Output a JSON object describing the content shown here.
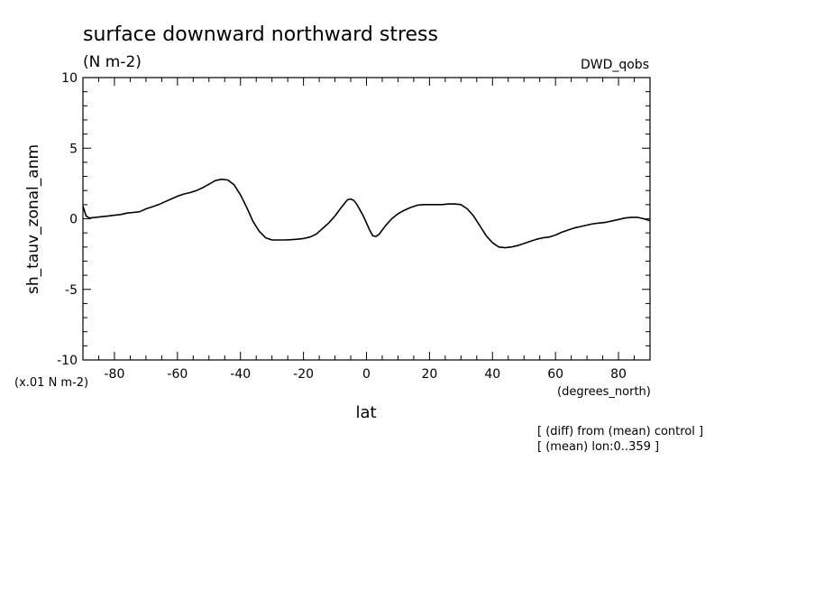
{
  "chart_data": {
    "type": "line",
    "title": "surface downward northward stress",
    "subtitle": "(N m-2)",
    "source_label": "DWD_qobs",
    "xlabel": "lat",
    "ylabel": "sh_tauv_zonal_anm",
    "x_unit": "(degrees_north)",
    "y_unit": "(x.01 N m-2)",
    "xlim": [
      -90,
      90
    ],
    "ylim": [
      -10,
      10
    ],
    "x_ticks": [
      -80,
      -60,
      -40,
      -20,
      0,
      20,
      40,
      60,
      80
    ],
    "x_tick_labels": [
      "-80",
      "-60",
      "-40",
      "-20",
      "0",
      "20",
      "40",
      "60",
      "80"
    ],
    "y_ticks": [
      -10,
      -5,
      0,
      5,
      10
    ],
    "y_tick_labels": [
      "-10",
      "-5",
      "0",
      "5",
      "10"
    ],
    "grid": false,
    "notes": [
      "[ (diff) from (mean) control ]",
      "[ (mean) lon:0..359 ]"
    ],
    "series": [
      {
        "x": [
          -90,
          -89,
          -88,
          -86,
          -84,
          -82,
          -80,
          -78,
          -76,
          -74,
          -72,
          -70,
          -68,
          -66,
          -64,
          -62,
          -60,
          -58,
          -56,
          -54,
          -52,
          -50,
          -48,
          -46,
          -44,
          -42,
          -40,
          -38,
          -36,
          -34,
          -32,
          -30,
          -28,
          -26,
          -24,
          -22,
          -20,
          -18,
          -16,
          -14,
          -12,
          -10,
          -8,
          -6,
          -5,
          -4,
          -3,
          -2,
          -1,
          0,
          1,
          2,
          3,
          4,
          5,
          6,
          8,
          10,
          12,
          14,
          16,
          18,
          20,
          22,
          24,
          26,
          28,
          30,
          32,
          34,
          36,
          38,
          40,
          42,
          44,
          46,
          48,
          50,
          52,
          54,
          56,
          58,
          60,
          62,
          64,
          66,
          68,
          70,
          72,
          74,
          76,
          78,
          80,
          82,
          84,
          86,
          88,
          90
        ],
        "y": [
          0.9,
          0.2,
          0.05,
          0.1,
          0.15,
          0.2,
          0.25,
          0.3,
          0.4,
          0.45,
          0.5,
          0.7,
          0.85,
          1.0,
          1.2,
          1.4,
          1.6,
          1.75,
          1.85,
          2.0,
          2.2,
          2.45,
          2.7,
          2.8,
          2.75,
          2.4,
          1.7,
          0.8,
          -0.2,
          -0.9,
          -1.35,
          -1.5,
          -1.5,
          -1.5,
          -1.48,
          -1.45,
          -1.4,
          -1.3,
          -1.1,
          -0.7,
          -0.3,
          0.2,
          0.8,
          1.35,
          1.4,
          1.3,
          1.0,
          0.6,
          0.2,
          -0.3,
          -0.8,
          -1.2,
          -1.25,
          -1.1,
          -0.8,
          -0.5,
          0.0,
          0.35,
          0.6,
          0.8,
          0.95,
          1.0,
          1.0,
          1.0,
          1.0,
          1.05,
          1.05,
          1.0,
          0.7,
          0.2,
          -0.5,
          -1.2,
          -1.7,
          -2.0,
          -2.05,
          -2.0,
          -1.9,
          -1.75,
          -1.6,
          -1.45,
          -1.35,
          -1.3,
          -1.15,
          -0.95,
          -0.8,
          -0.65,
          -0.55,
          -0.45,
          -0.35,
          -0.3,
          -0.25,
          -0.15,
          -0.05,
          0.05,
          0.1,
          0.1,
          0.0,
          -0.15
        ]
      }
    ]
  }
}
